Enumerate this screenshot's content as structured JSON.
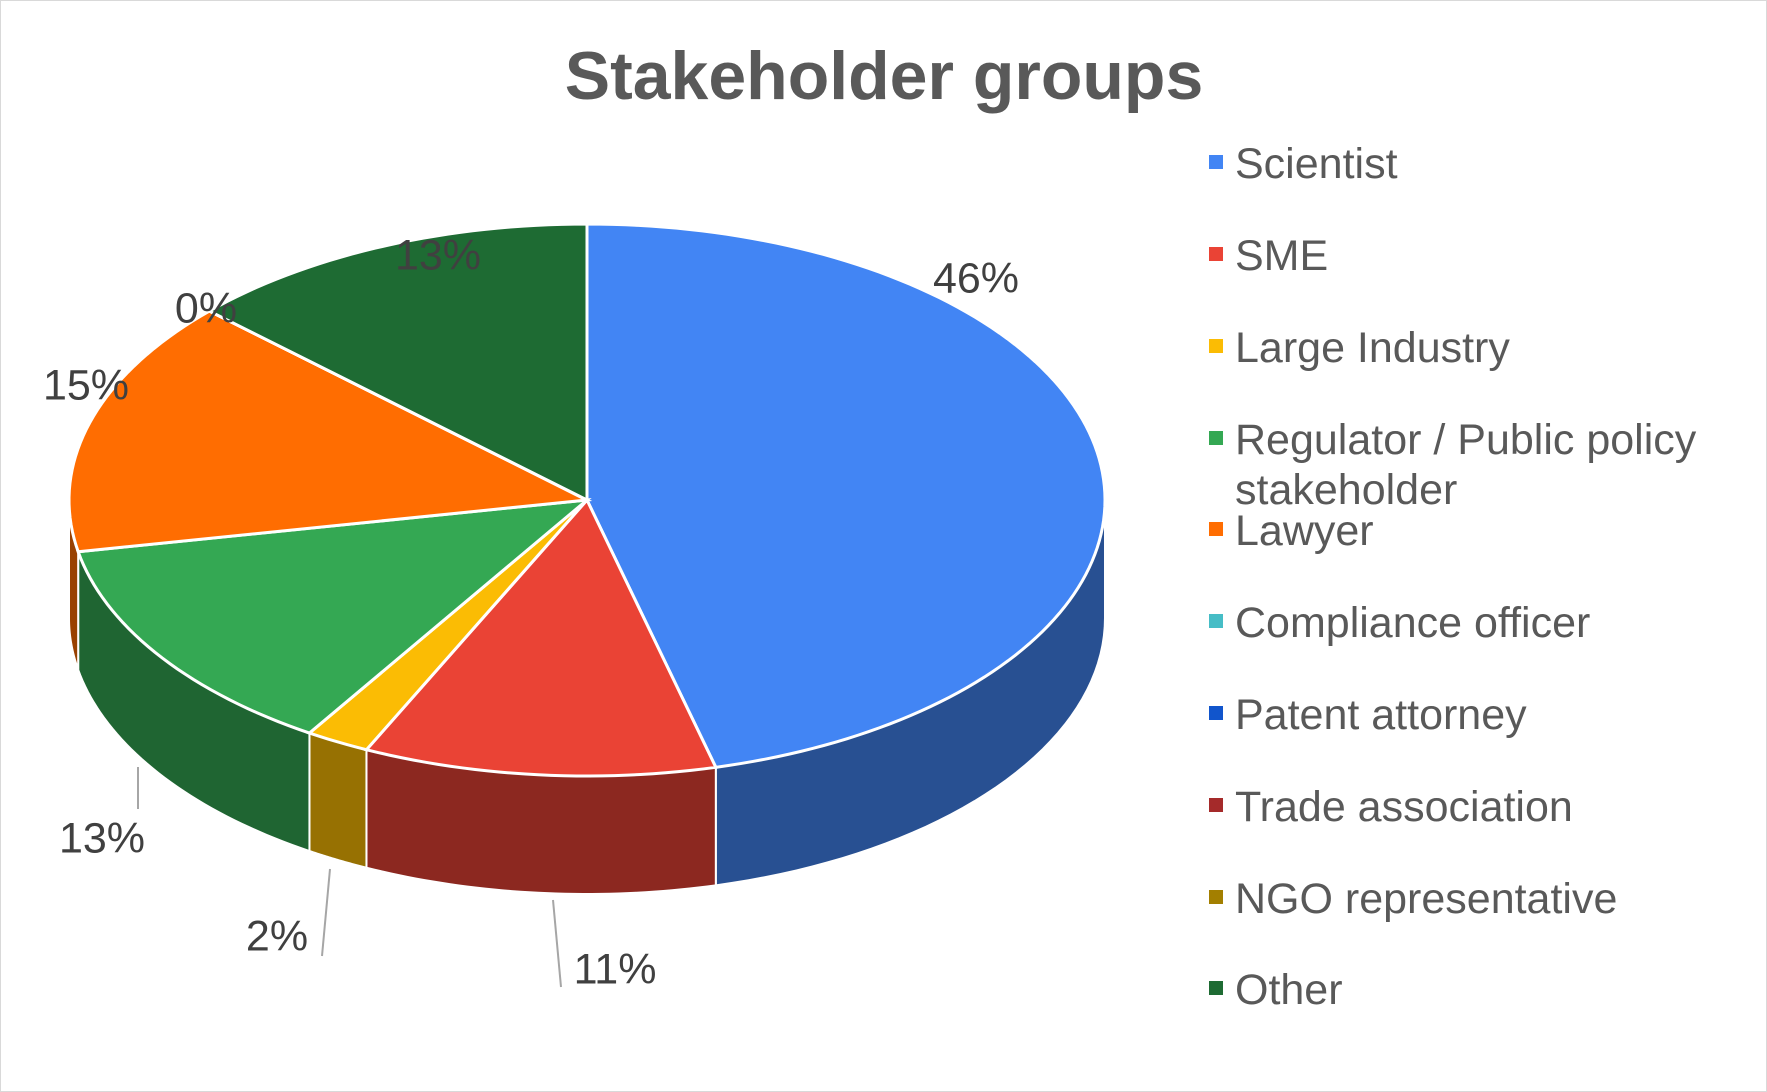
{
  "chart_data": {
    "type": "pie3d",
    "title": "Stakeholder groups",
    "categories": [
      "Scientist",
      "SME",
      "Large Industry",
      "Regulator / Public policy stakeholder",
      "Lawyer",
      "Compliance officer",
      "Patent attorney",
      "Trade association",
      "NGO representative",
      "Other"
    ],
    "values": [
      46,
      11,
      2,
      13,
      15,
      0,
      0,
      0,
      0,
      13
    ],
    "value_labels": [
      "46%",
      "11%",
      "2%",
      "13%",
      "15%",
      "0%",
      null,
      null,
      null,
      "13%"
    ],
    "colors": [
      "#4285f4",
      "#ea4335",
      "#fbbc04",
      "#34a853",
      "#ff6d01",
      "#46bdc6",
      "#1155cc",
      "#a52a2a",
      "#a37f00",
      "#1e6b33"
    ],
    "legend": "right"
  }
}
